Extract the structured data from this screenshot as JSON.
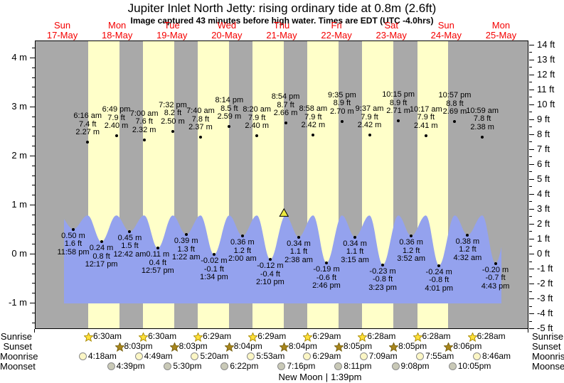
{
  "title": "Jupiter Inlet North Jetty: rising  ordinary tide at 0.8m (2.6ft)",
  "subtitle": "Image captured 43 minutes before high water. Times are EDT (UTC -4.0hrs)",
  "colors": {
    "night_band": "#a9a9a9",
    "day_band": "#ffffc9",
    "water": "#94a2ee",
    "day_label": "#f40000",
    "sunrise_star_fill": "#ffe13a",
    "sunrise_star_stroke": "#a98a00",
    "sunset_star_fill": "#a8861c",
    "sunset_star_stroke": "#776011",
    "moonrise_fill": "#fbf6c5",
    "moonrise_stroke": "#8a8a8a",
    "moonset_fill": "#c9c9b7",
    "moonset_stroke": "#8a8a8a",
    "now_triangle_fill": "#ece93f",
    "now_triangle_stroke": "#000000",
    "text": "#000000"
  },
  "days": [
    {
      "dow": "Sun",
      "date": "17-May"
    },
    {
      "dow": "Mon",
      "date": "18-May"
    },
    {
      "dow": "Tue",
      "date": "19-May"
    },
    {
      "dow": "Wed",
      "date": "20-May"
    },
    {
      "dow": "Thu",
      "date": "21-May"
    },
    {
      "dow": "Fri",
      "date": "22-May"
    },
    {
      "dow": "Sat",
      "date": "23-May"
    },
    {
      "dow": "Sun",
      "date": "24-May"
    },
    {
      "dow": "Mon",
      "date": "25-May"
    }
  ],
  "y_axis_left": {
    "unit": "m",
    "labels": [
      "4 m",
      "3 m",
      "2 m",
      "1 m",
      "0 m",
      "-1 m"
    ],
    "values": [
      4,
      3,
      2,
      1,
      0,
      -1
    ]
  },
  "y_axis_right": {
    "unit": "ft",
    "labels": [
      "14 ft",
      "13 ft",
      "12 ft",
      "11 ft",
      "10 ft",
      "9 ft",
      "8 ft",
      "7 ft",
      "6 ft",
      "5 ft",
      "4 ft",
      "3 ft",
      "2 ft",
      "1 ft",
      "0 ft",
      "-1 ft",
      "-2 ft",
      "-3 ft",
      "-4 ft",
      "-5 ft"
    ],
    "values": [
      14,
      13,
      12,
      11,
      10,
      9,
      8,
      7,
      6,
      5,
      4,
      3,
      2,
      1,
      0,
      -1,
      -2,
      -3,
      -4,
      -5
    ]
  },
  "chart_data": {
    "type": "area",
    "title": "Jupiter Inlet North Jetty tide curve",
    "x_axis": "days Sun 17-May through Mon 25-May",
    "ylabel_left": "meters",
    "ylabel_right": "feet",
    "ylim_m": [
      -1.54,
      4.35
    ],
    "current_tide": {
      "level_m": 0.8,
      "level_label": "0.8m (2.6ft)",
      "state": "rising",
      "note": "43 minutes before high water",
      "day": 4,
      "hour": 20.1833
    },
    "wave_crest_level_m": 0.78,
    "high_tides": [
      {
        "day": 1,
        "hour": 6.2667,
        "time": "6:16 am",
        "ft": "7.4 ft",
        "m": "2.27 m",
        "height_m": 2.27
      },
      {
        "day": 1,
        "hour": 18.8167,
        "time": "6:49 pm",
        "ft": "7.9 ft",
        "m": "2.40 m",
        "height_m": 2.4
      },
      {
        "day": 2,
        "hour": 7.0,
        "time": "7:00 am",
        "ft": "7.6 ft",
        "m": "2.32 m",
        "height_m": 2.32
      },
      {
        "day": 2,
        "hour": 19.5333,
        "time": "7:32 pm",
        "ft": "8.2 ft",
        "m": "2.50 m",
        "height_m": 2.5
      },
      {
        "day": 3,
        "hour": 7.6667,
        "time": "7:40 am",
        "ft": "7.8 ft",
        "m": "2.37 m",
        "height_m": 2.37
      },
      {
        "day": 3,
        "hour": 20.2333,
        "time": "8:14 pm",
        "ft": "8.5 ft",
        "m": "2.59 m",
        "height_m": 2.59
      },
      {
        "day": 4,
        "hour": 8.3333,
        "time": "8:20 am",
        "ft": "7.9 ft",
        "m": "2.40 m",
        "height_m": 2.4
      },
      {
        "day": 4,
        "hour": 20.9,
        "time": "8:54 pm",
        "ft": "8.7 ft",
        "m": "2.66 m",
        "height_m": 2.66
      },
      {
        "day": 5,
        "hour": 8.9667,
        "time": "8:58 am",
        "ft": "7.9 ft",
        "m": "2.42 m",
        "height_m": 2.42
      },
      {
        "day": 5,
        "hour": 21.5833,
        "time": "9:35 pm",
        "ft": "8.9 ft",
        "m": "2.70 m",
        "height_m": 2.7
      },
      {
        "day": 6,
        "hour": 9.6167,
        "time": "9:37 am",
        "ft": "7.9 ft",
        "m": "2.42 m",
        "height_m": 2.42
      },
      {
        "day": 6,
        "hour": 22.25,
        "time": "10:15 pm",
        "ft": "8.9 ft",
        "m": "2.71 m",
        "height_m": 2.71
      },
      {
        "day": 7,
        "hour": 10.2833,
        "time": "10:17 am",
        "ft": "7.9 ft",
        "m": "2.41 m",
        "height_m": 2.41
      },
      {
        "day": 7,
        "hour": 22.95,
        "time": "10:57 pm",
        "ft": "8.8 ft",
        "m": "2.69 m",
        "height_m": 2.69
      },
      {
        "day": 8,
        "hour": 10.9833,
        "time": "10:59 am",
        "ft": "7.8 ft",
        "m": "2.38 m",
        "height_m": 2.38
      }
    ],
    "low_tides": [
      {
        "day": 0,
        "hour": 23.9667,
        "time": "11:58 pm",
        "ft": "1.6 ft",
        "m": "0.50 m",
        "height_m": 0.5
      },
      {
        "day": 1,
        "hour": 12.2833,
        "time": "12:17 pm",
        "ft": "0.8 ft",
        "m": "0.24 m",
        "height_m": 0.24
      },
      {
        "day": 2,
        "hour": 0.7,
        "time": "12:42 am",
        "ft": "1.5 ft",
        "m": "0.45 m",
        "height_m": 0.45
      },
      {
        "day": 2,
        "hour": 12.95,
        "time": "12:57 pm",
        "ft": "0.4 ft",
        "m": "0.11 m",
        "height_m": 0.11
      },
      {
        "day": 3,
        "hour": 1.3667,
        "time": "1:22 am",
        "ft": "1.3 ft",
        "m": "0.39 m",
        "height_m": 0.39
      },
      {
        "day": 3,
        "hour": 13.5667,
        "time": "1:34 pm",
        "ft": "-0.1 ft",
        "m": "-0.02 m",
        "height_m": -0.02
      },
      {
        "day": 4,
        "hour": 2.0,
        "time": "2:00 am",
        "ft": "1.2 ft",
        "m": "0.36 m",
        "height_m": 0.36
      },
      {
        "day": 4,
        "hour": 14.1667,
        "time": "2:10 pm",
        "ft": "-0.4 ft",
        "m": "-0.12 m",
        "height_m": -0.12
      },
      {
        "day": 5,
        "hour": 2.6333,
        "time": "2:38 am",
        "ft": "1.1 ft",
        "m": "0.34 m",
        "height_m": 0.34
      },
      {
        "day": 5,
        "hour": 14.7667,
        "time": "2:46 pm",
        "ft": "-0.6 ft",
        "m": "-0.19 m",
        "height_m": -0.19
      },
      {
        "day": 6,
        "hour": 3.25,
        "time": "3:15 am",
        "ft": "1.1 ft",
        "m": "0.34 m",
        "height_m": 0.34
      },
      {
        "day": 6,
        "hour": 15.3833,
        "time": "3:23 pm",
        "ft": "-0.8 ft",
        "m": "-0.23 m",
        "height_m": -0.23
      },
      {
        "day": 7,
        "hour": 3.8667,
        "time": "3:52 am",
        "ft": "1.2 ft",
        "m": "0.36 m",
        "height_m": 0.36
      },
      {
        "day": 7,
        "hour": 16.0167,
        "time": "4:01 pm",
        "ft": "-0.8 ft",
        "m": "-0.24 m",
        "height_m": -0.24
      },
      {
        "day": 8,
        "hour": 4.5333,
        "time": "4:32 am",
        "ft": "1.2 ft",
        "m": "0.38 m",
        "height_m": 0.38
      },
      {
        "day": 8,
        "hour": 16.7167,
        "time": "4:43 pm",
        "ft": "-0.7 ft",
        "m": "-0.20 m",
        "height_m": -0.2
      }
    ]
  },
  "astro": {
    "row_labels": [
      "Sunrise",
      "Sunset",
      "Moonrise",
      "Moonset"
    ],
    "sunrise": [
      {
        "day": 1,
        "time": "6:30am"
      },
      {
        "day": 2,
        "time": "6:30am"
      },
      {
        "day": 3,
        "time": "6:29am"
      },
      {
        "day": 4,
        "time": "6:29am"
      },
      {
        "day": 5,
        "time": "6:29am"
      },
      {
        "day": 6,
        "time": "6:28am"
      },
      {
        "day": 7,
        "time": "6:28am"
      },
      {
        "day": 8,
        "time": "6:28am"
      }
    ],
    "sunset": [
      {
        "day": 1,
        "time": "8:03pm"
      },
      {
        "day": 2,
        "time": "8:03pm"
      },
      {
        "day": 3,
        "time": "8:04pm"
      },
      {
        "day": 4,
        "time": "8:04pm"
      },
      {
        "day": 5,
        "time": "8:05pm"
      },
      {
        "day": 6,
        "time": "8:05pm"
      },
      {
        "day": 7,
        "time": "8:06pm"
      }
    ],
    "moonrise": [
      {
        "day": 1,
        "time": "4:18am"
      },
      {
        "day": 2,
        "time": "4:49am"
      },
      {
        "day": 3,
        "time": "5:20am"
      },
      {
        "day": 4,
        "time": "5:53am"
      },
      {
        "day": 5,
        "time": "6:29am"
      },
      {
        "day": 6,
        "time": "7:09am"
      },
      {
        "day": 7,
        "time": "7:55am"
      },
      {
        "day": 8,
        "time": "8:46am"
      }
    ],
    "moonset": [
      {
        "day": 1,
        "time": "4:39pm"
      },
      {
        "day": 2,
        "time": "5:30pm"
      },
      {
        "day": 3,
        "time": "6:22pm"
      },
      {
        "day": 4,
        "time": "7:16pm"
      },
      {
        "day": 5,
        "time": "8:11pm"
      },
      {
        "day": 6,
        "time": "9:08pm"
      },
      {
        "day": 7,
        "time": "10:05pm"
      }
    ]
  },
  "footer": {
    "phase": "New Moon",
    "separator": "|",
    "time": "1:39pm"
  }
}
